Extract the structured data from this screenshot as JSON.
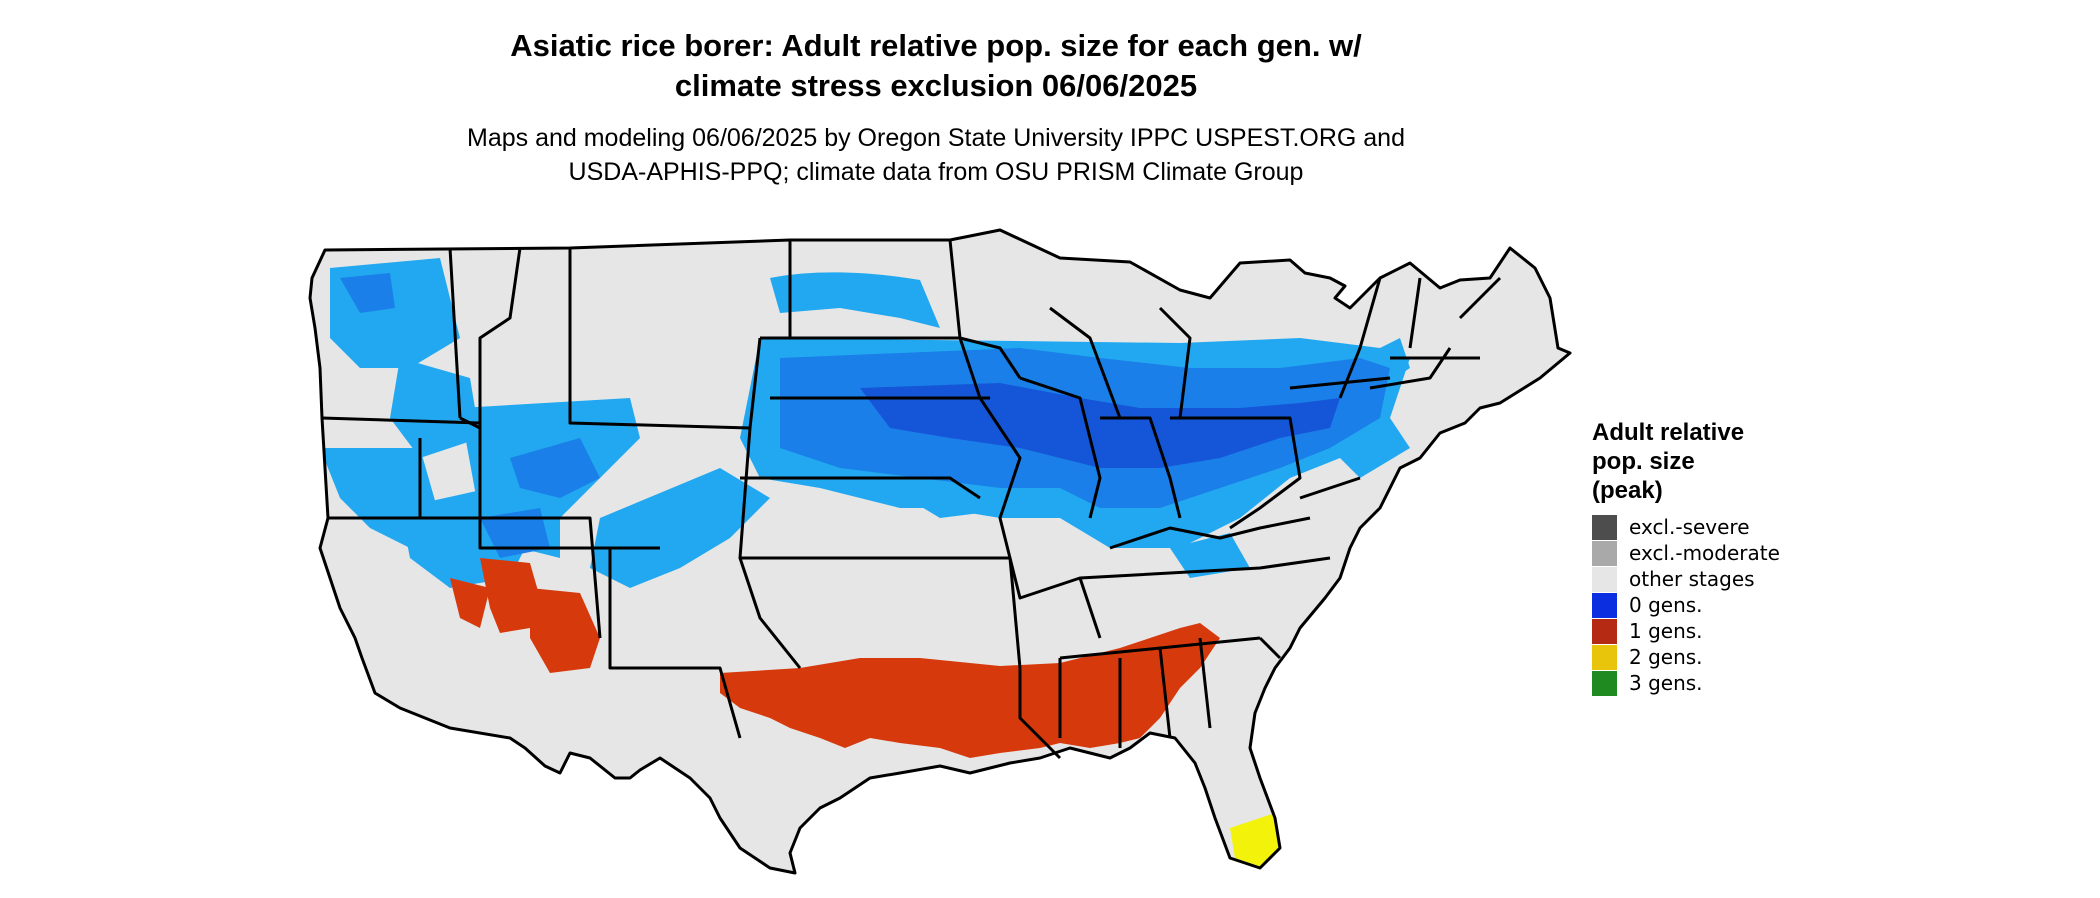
{
  "header": {
    "title_line1": "Asiatic rice borer: Adult relative pop. size for each gen. w/",
    "title_line2": "climate stress exclusion 06/06/2025",
    "subtitle_line1": "Maps and modeling 06/06/2025 by Oregon State University IPPC USPEST.ORG and",
    "subtitle_line2": "USDA-APHIS-PPQ; climate data from OSU PRISM Climate Group"
  },
  "legend": {
    "title_line1": "Adult relative",
    "title_line2": "pop. size",
    "title_line3": "(peak)",
    "items": [
      {
        "label": "excl.-severe",
        "color": "#4d4d4d"
      },
      {
        "label": "excl.-moderate",
        "color": "#a9a9a9"
      },
      {
        "label": "other stages",
        "color": "#e6e6e6"
      },
      {
        "label": "0 gens.",
        "color": "#0a2ee0"
      },
      {
        "label": "1 gens.",
        "color": "#b52a12"
      },
      {
        "label": "2 gens.",
        "color": "#e8c50b"
      },
      {
        "label": "3 gens.",
        "color": "#1f8a1f"
      }
    ]
  },
  "map_colors": {
    "land": "#e6e6e6",
    "zero_gen_light": "#22a8f0",
    "zero_gen_mid": "#1a7fe8",
    "zero_gen_dark": "#1556d8",
    "one_gen": "#d63a0c",
    "two_gen": "#f2f20a",
    "border": "#000000"
  }
}
